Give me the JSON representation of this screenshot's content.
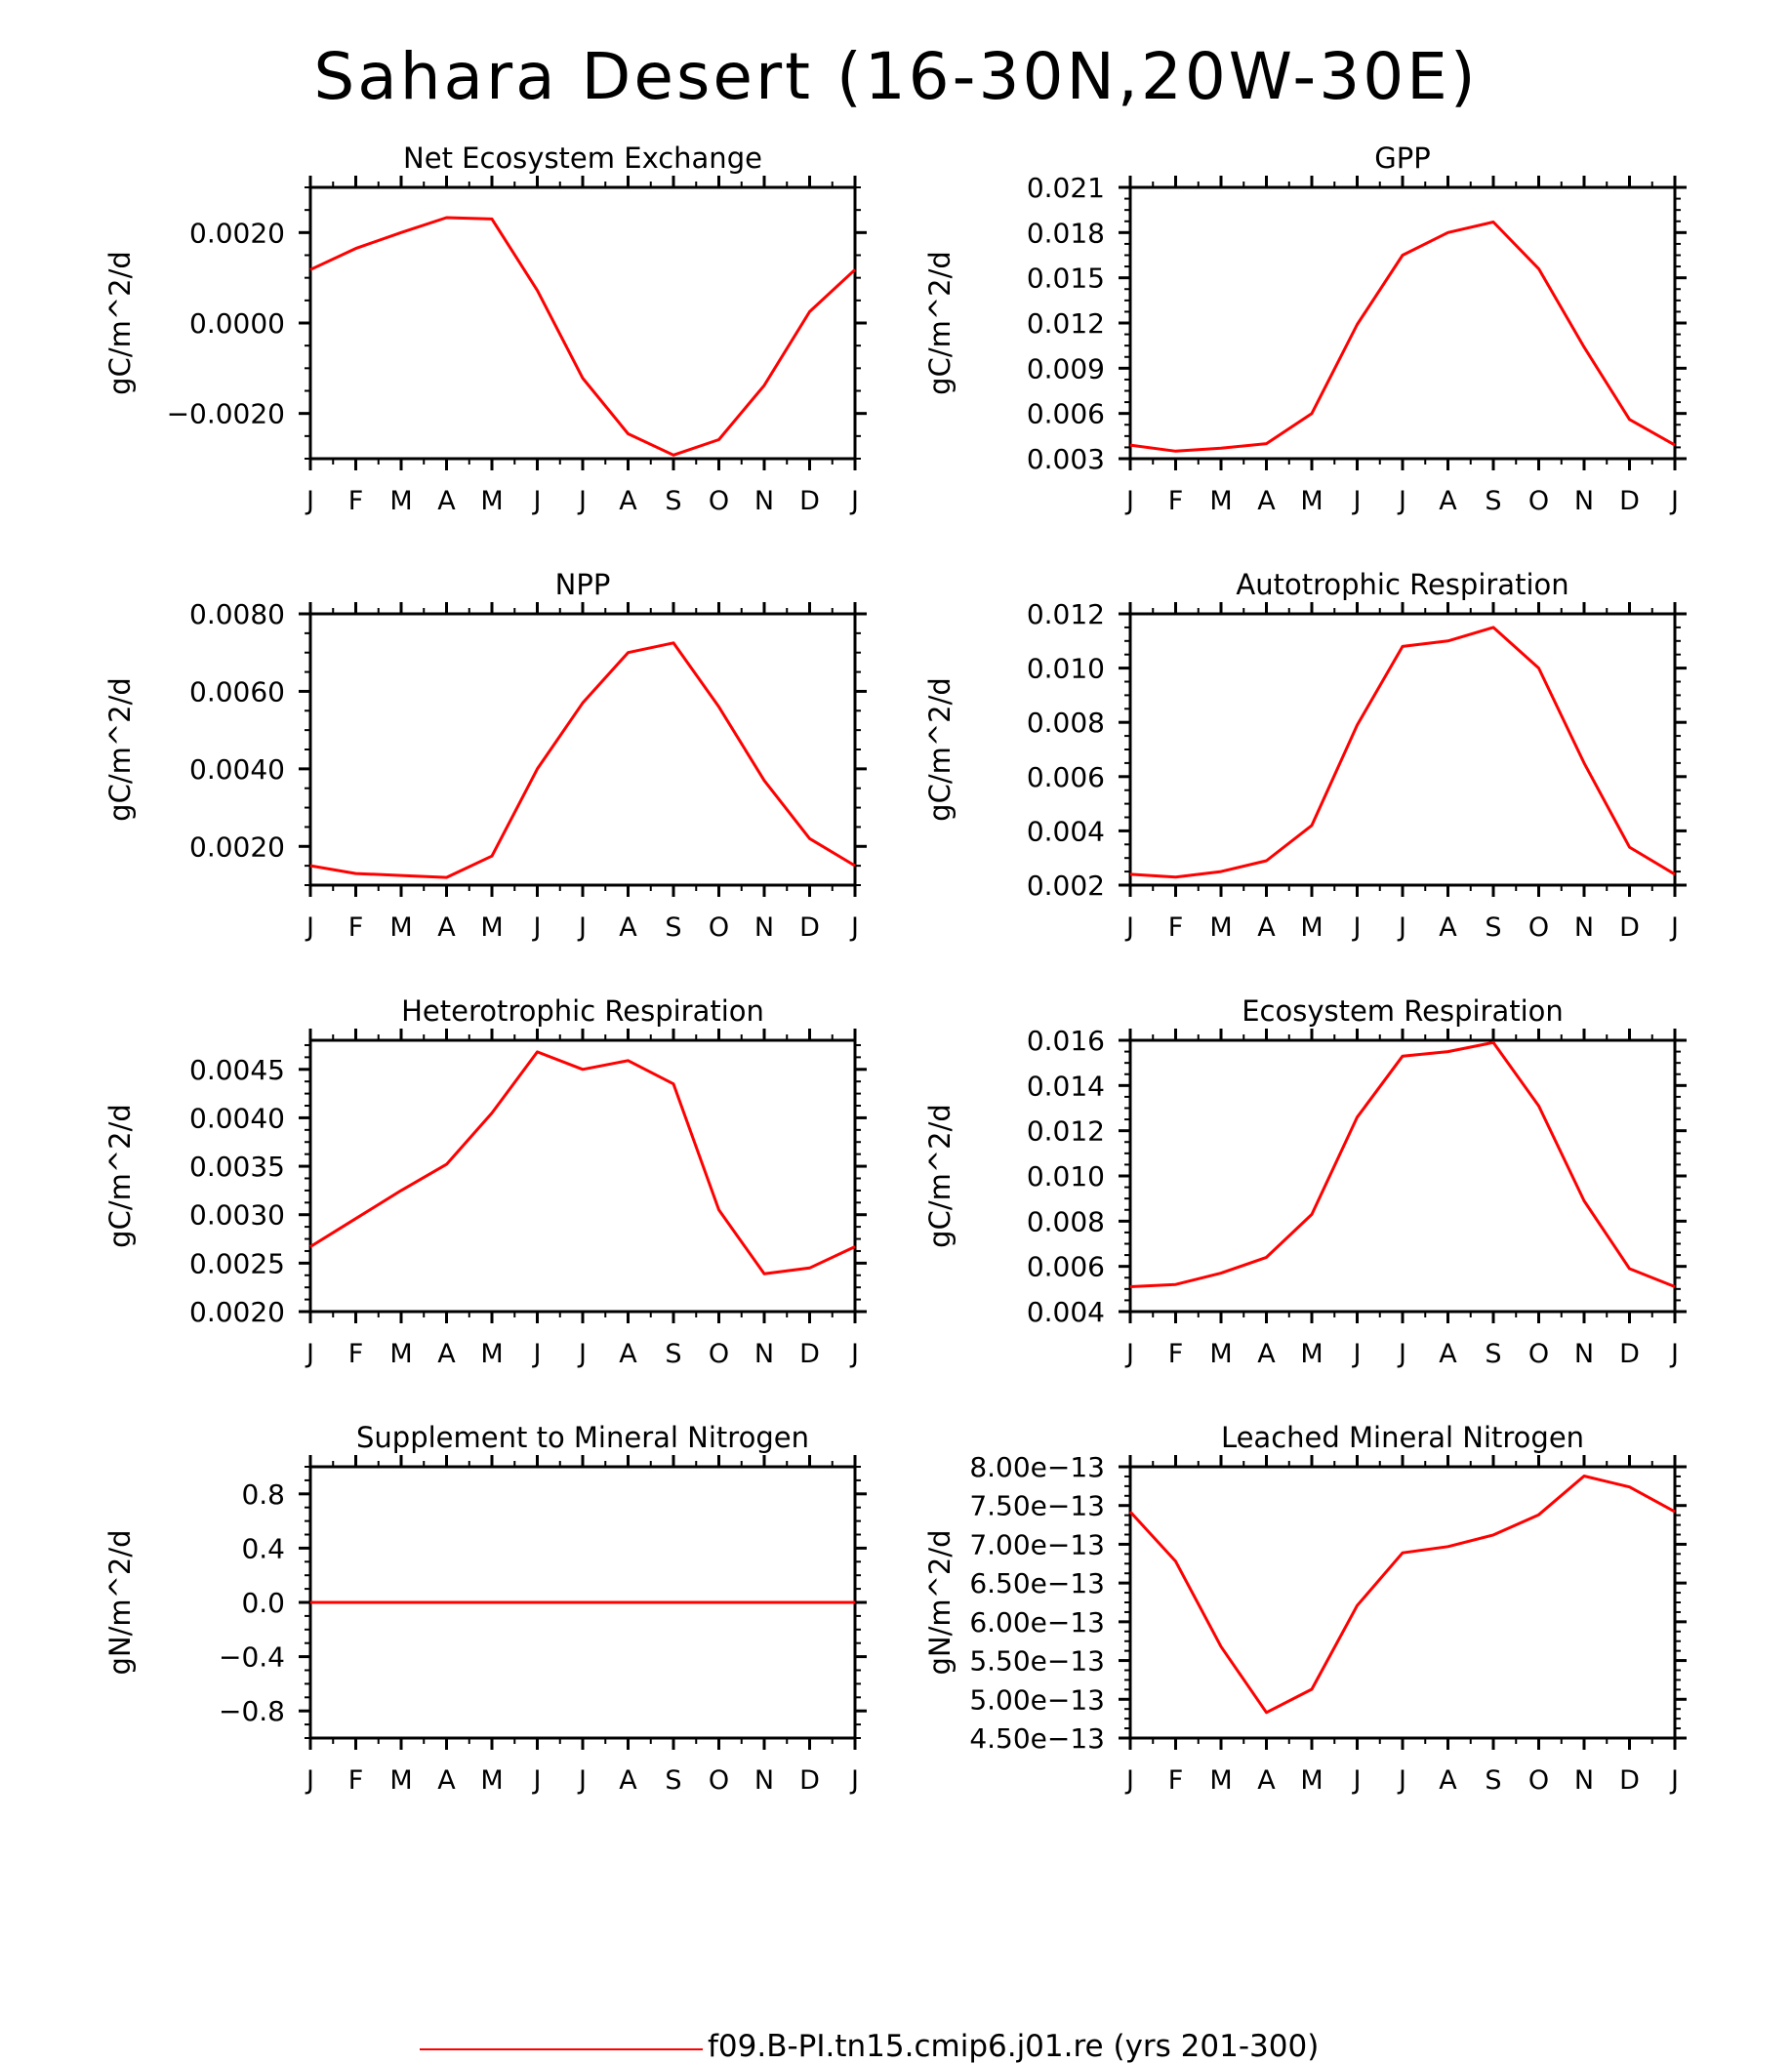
{
  "title": "Sahara Desert (16-30N,20W-30E)",
  "legend": {
    "label": "f09.B-PI.tn15.cmip6.j01.re (yrs 201-300)",
    "color": "#ff0000"
  },
  "chart_data": [
    {
      "type": "line",
      "title": "Net Ecosystem Exchange",
      "ylabel": "gC/m^2/d",
      "categories": [
        "J",
        "F",
        "M",
        "A",
        "M",
        "J",
        "J",
        "A",
        "S",
        "O",
        "N",
        "D",
        "J"
      ],
      "ylim": [
        -0.003,
        0.003
      ],
      "yticks": [
        -0.002,
        0.0,
        0.002
      ],
      "ytick_labels": [
        "−0.0020",
        "0.0000",
        "0.0020"
      ],
      "values": [
        0.00118,
        0.00165,
        0.002,
        0.00233,
        0.0023,
        0.00072,
        -0.00122,
        -0.00245,
        -0.00292,
        -0.00258,
        -0.00138,
        0.00025,
        0.00118
      ]
    },
    {
      "type": "line",
      "title": "GPP",
      "ylabel": "gC/m^2/d",
      "categories": [
        "J",
        "F",
        "M",
        "A",
        "M",
        "J",
        "J",
        "A",
        "S",
        "O",
        "N",
        "D",
        "J"
      ],
      "ylim": [
        0.003,
        0.021
      ],
      "yticks": [
        0.003,
        0.006,
        0.009,
        0.012,
        0.015,
        0.018,
        0.021
      ],
      "ytick_labels": [
        "0.003",
        "0.006",
        "0.009",
        "0.012",
        "0.015",
        "0.018",
        "0.021"
      ],
      "values": [
        0.0039,
        0.0035,
        0.0037,
        0.004,
        0.006,
        0.0119,
        0.0165,
        0.018,
        0.0187,
        0.0156,
        0.0104,
        0.0056,
        0.0039
      ]
    },
    {
      "type": "line",
      "title": "NPP",
      "ylabel": "gC/m^2/d",
      "categories": [
        "J",
        "F",
        "M",
        "A",
        "M",
        "J",
        "J",
        "A",
        "S",
        "O",
        "N",
        "D",
        "J"
      ],
      "ylim": [
        0.001,
        0.008
      ],
      "yticks": [
        0.002,
        0.004,
        0.006,
        0.008
      ],
      "ytick_labels": [
        "0.0020",
        "0.0040",
        "0.0060",
        "0.0080"
      ],
      "values": [
        0.0015,
        0.0013,
        0.00125,
        0.0012,
        0.00175,
        0.004,
        0.0057,
        0.007,
        0.00725,
        0.0056,
        0.0037,
        0.0022,
        0.0015
      ]
    },
    {
      "type": "line",
      "title": "Autotrophic Respiration",
      "ylabel": "gC/m^2/d",
      "categories": [
        "J",
        "F",
        "M",
        "A",
        "M",
        "J",
        "J",
        "A",
        "S",
        "O",
        "N",
        "D",
        "J"
      ],
      "ylim": [
        0.002,
        0.012
      ],
      "yticks": [
        0.002,
        0.004,
        0.006,
        0.008,
        0.01,
        0.012
      ],
      "ytick_labels": [
        "0.002",
        "0.004",
        "0.006",
        "0.008",
        "0.010",
        "0.012"
      ],
      "values": [
        0.0024,
        0.0023,
        0.0025,
        0.0029,
        0.0042,
        0.0079,
        0.0108,
        0.011,
        0.0115,
        0.01,
        0.0065,
        0.0034,
        0.0024
      ]
    },
    {
      "type": "line",
      "title": "Heterotrophic Respiration",
      "ylabel": "gC/m^2/d",
      "categories": [
        "J",
        "F",
        "M",
        "A",
        "M",
        "J",
        "J",
        "A",
        "S",
        "O",
        "N",
        "D",
        "J"
      ],
      "ylim": [
        0.002,
        0.0048
      ],
      "yticks": [
        0.002,
        0.0025,
        0.003,
        0.0035,
        0.004,
        0.0045
      ],
      "ytick_labels": [
        "0.0020",
        "0.0025",
        "0.0030",
        "0.0035",
        "0.0040",
        "0.0045"
      ],
      "values": [
        0.00267,
        0.00296,
        0.00325,
        0.00352,
        0.00405,
        0.00468,
        0.0045,
        0.00459,
        0.00435,
        0.00305,
        0.00239,
        0.00245,
        0.00267
      ]
    },
    {
      "type": "line",
      "title": "Ecosystem Respiration",
      "ylabel": "gC/m^2/d",
      "categories": [
        "J",
        "F",
        "M",
        "A",
        "M",
        "J",
        "J",
        "A",
        "S",
        "O",
        "N",
        "D",
        "J"
      ],
      "ylim": [
        0.004,
        0.016
      ],
      "yticks": [
        0.004,
        0.006,
        0.008,
        0.01,
        0.012,
        0.014,
        0.016
      ],
      "ytick_labels": [
        "0.004",
        "0.006",
        "0.008",
        "0.010",
        "0.012",
        "0.014",
        "0.016"
      ],
      "values": [
        0.0051,
        0.0052,
        0.0057,
        0.0064,
        0.0083,
        0.0126,
        0.0153,
        0.0155,
        0.0159,
        0.0131,
        0.0089,
        0.0059,
        0.0051
      ]
    },
    {
      "type": "line",
      "title": "Supplement to Mineral Nitrogen",
      "ylabel": "gN/m^2/d",
      "categories": [
        "J",
        "F",
        "M",
        "A",
        "M",
        "J",
        "J",
        "A",
        "S",
        "O",
        "N",
        "D",
        "J"
      ],
      "ylim": [
        -1.0,
        1.0
      ],
      "yticks": [
        -0.8,
        -0.4,
        0.0,
        0.4,
        0.8
      ],
      "ytick_labels": [
        "−0.8",
        "−0.4",
        "0.0",
        "0.4",
        "0.8"
      ],
      "values": [
        0,
        0,
        0,
        0,
        0,
        0,
        0,
        0,
        0,
        0,
        0,
        0,
        0
      ]
    },
    {
      "type": "line",
      "title": "Leached Mineral Nitrogen",
      "ylabel": "gN/m^2/d",
      "categories": [
        "J",
        "F",
        "M",
        "A",
        "M",
        "J",
        "J",
        "A",
        "S",
        "O",
        "N",
        "D",
        "J"
      ],
      "ylim": [
        4.5e-13,
        8e-13
      ],
      "yticks": [
        4.5e-13,
        5e-13,
        5.5e-13,
        6e-13,
        6.5e-13,
        7e-13,
        7.5e-13,
        8e-13
      ],
      "ytick_labels": [
        "4.50e−13",
        "5.00e−13",
        "5.50e−13",
        "6.00e−13",
        "6.50e−13",
        "7.00e−13",
        "7.50e−13",
        "8.00e−13"
      ],
      "values": [
        7.42e-13,
        6.78e-13,
        5.68e-13,
        4.83e-13,
        5.13e-13,
        6.21e-13,
        6.89e-13,
        6.97e-13,
        7.12e-13,
        7.38e-13,
        7.88e-13,
        7.74e-13,
        7.42e-13
      ]
    }
  ]
}
